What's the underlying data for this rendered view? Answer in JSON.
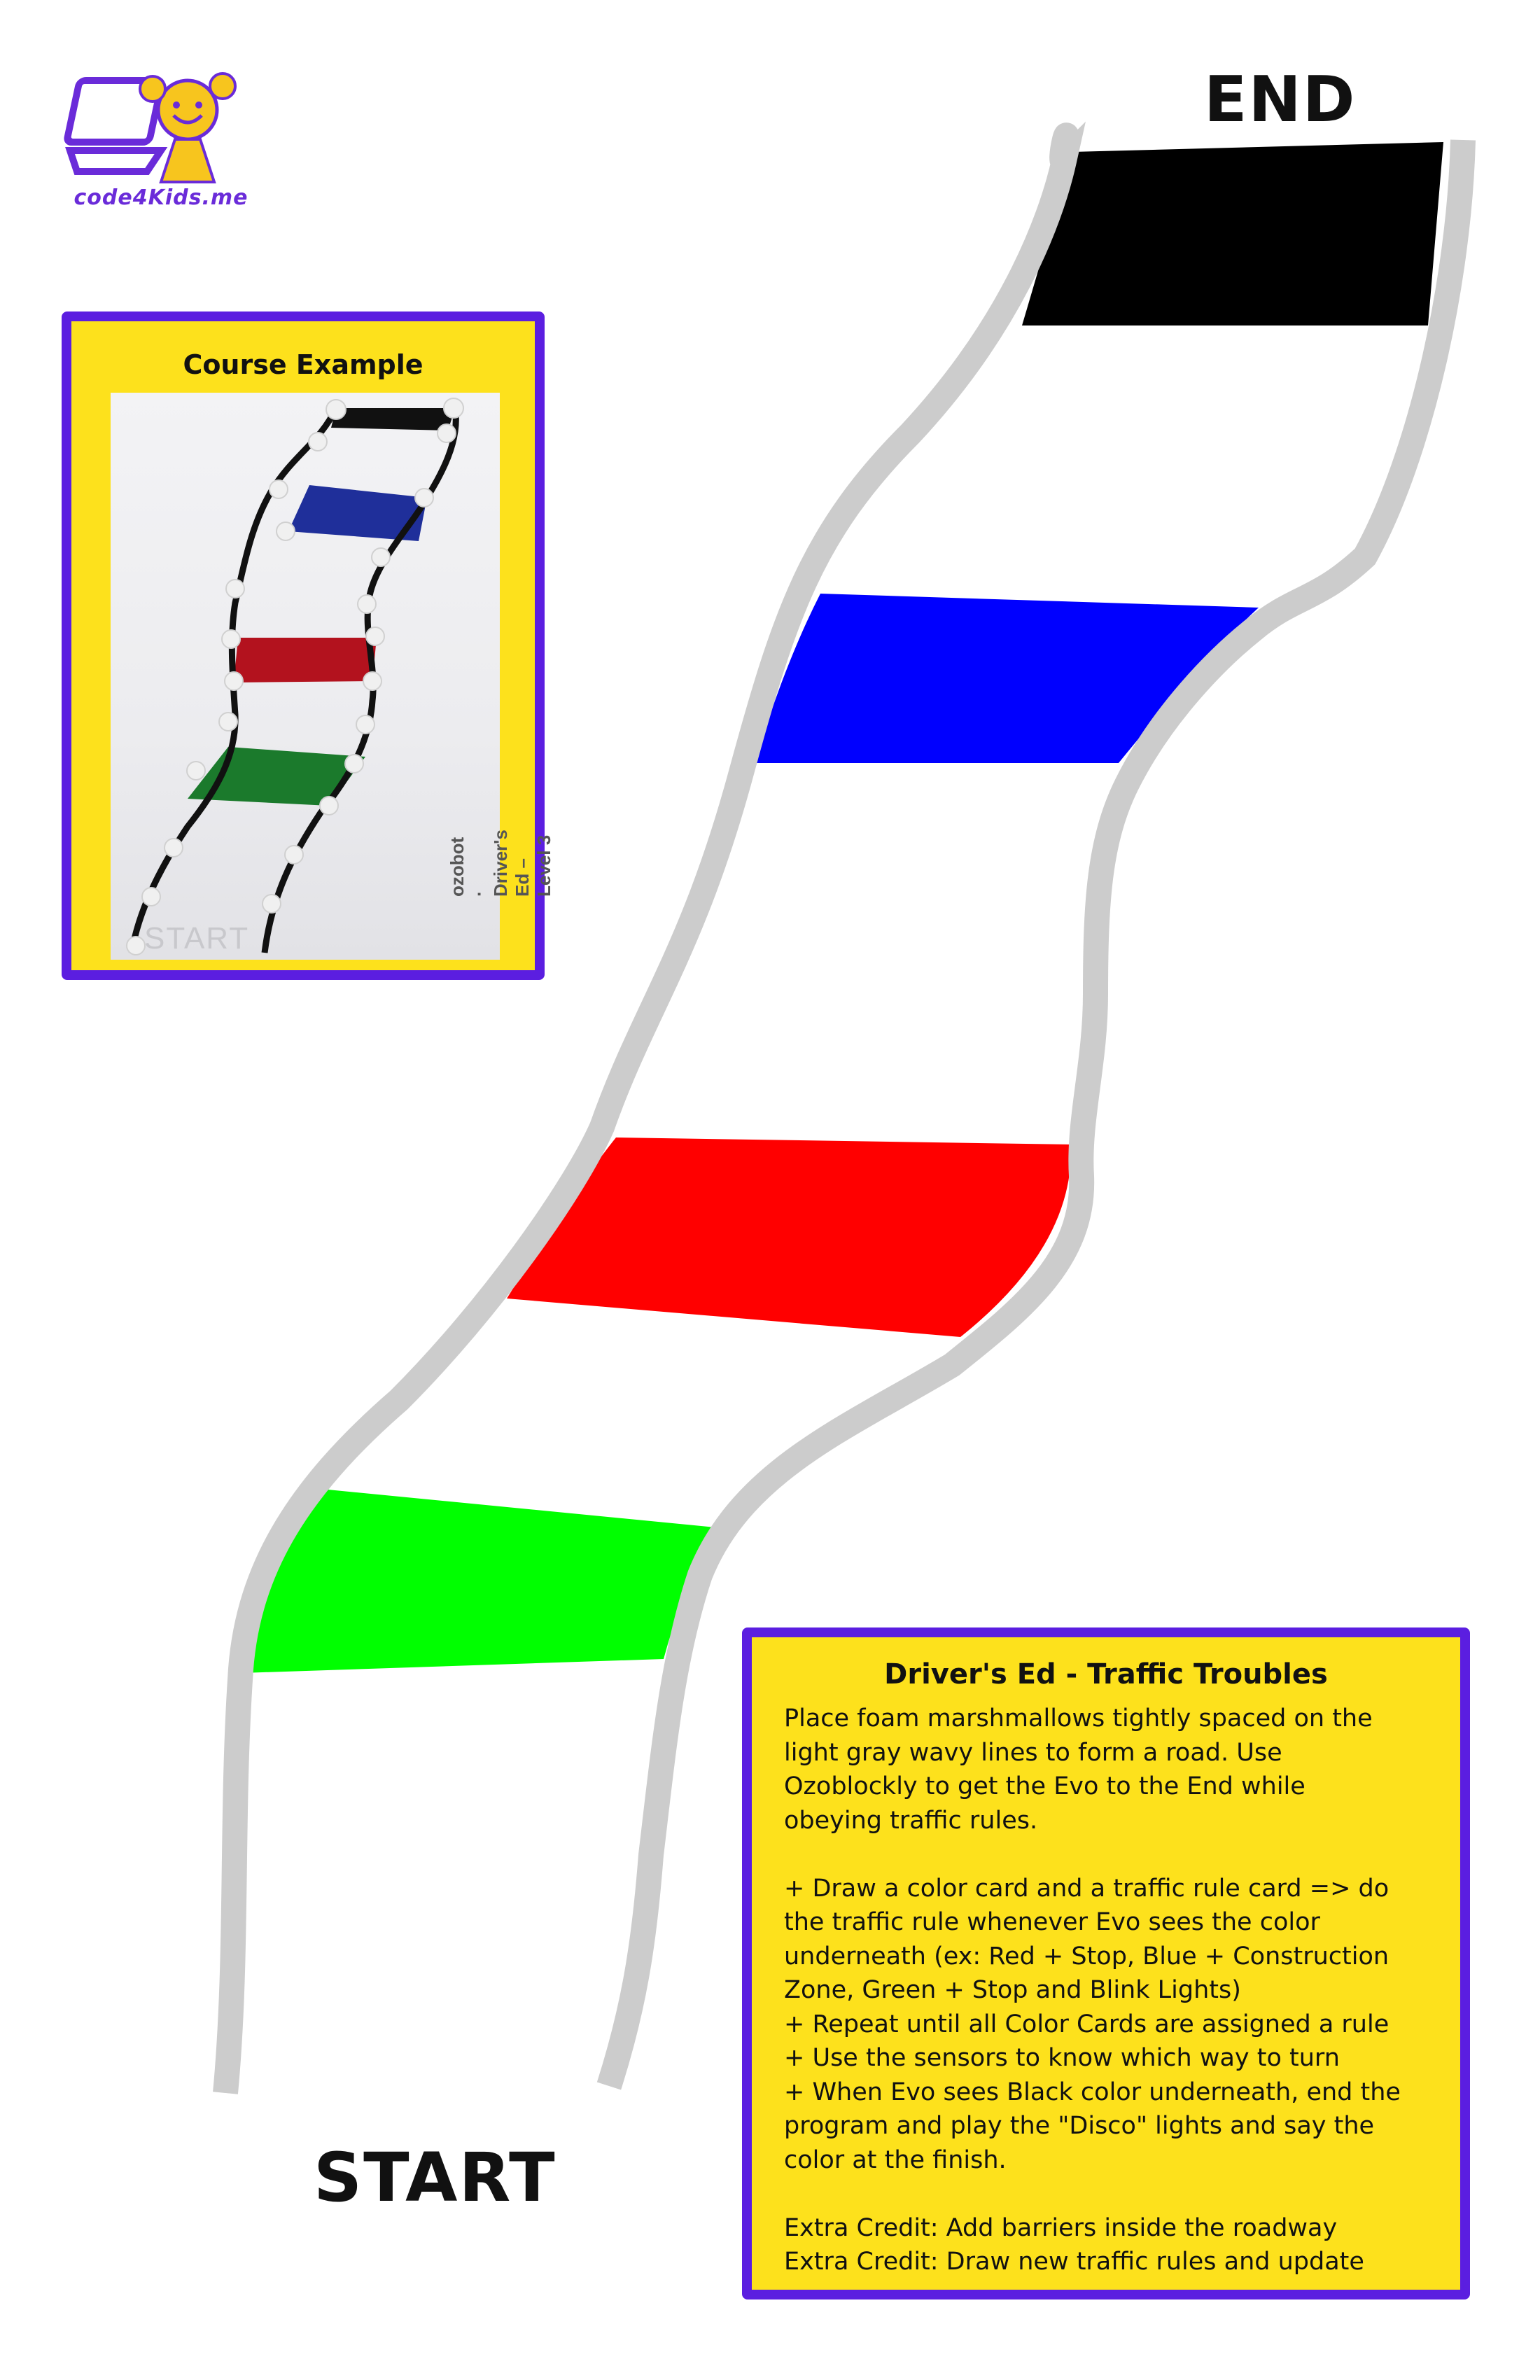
{
  "logo": {
    "text": "code4Kids.me",
    "icon": "laptop-kid-logo-icon"
  },
  "labels": {
    "end": "END",
    "start": "START"
  },
  "course_example": {
    "title": "Course Example",
    "photo_start": "START",
    "photo_brand": "ozobot · Driver's Ed – Level 3"
  },
  "road": {
    "edge_color": "#cccccc",
    "stripes": [
      {
        "color": "#000000",
        "name": "black"
      },
      {
        "color": "#0000ff",
        "name": "blue"
      },
      {
        "color": "#ff0000",
        "name": "red"
      },
      {
        "color": "#00ff00",
        "name": "green"
      }
    ]
  },
  "instructions": {
    "title": "Driver's Ed - Traffic Troubles",
    "paragraph1": [
      "Place foam marshmallows tightly spaced on the",
      "light gray wavy lines to form a road. Use",
      "Ozoblockly to get the Evo to the End while",
      "obeying traffic rules."
    ],
    "rules": [
      "+ Draw a color card and a traffic rule card => do",
      "the traffic rule whenever Evo sees the color",
      "underneath (ex: Red + Stop, Blue + Construction",
      "Zone, Green + Stop and Blink Lights)",
      "+ Repeat until all Color Cards are assigned a rule",
      "+ Use the sensors to know which way to turn",
      "+ When Evo sees Black color underneath, end the",
      "program and play the \"Disco\" lights and say the",
      "color at the finish."
    ],
    "extra": [
      "Extra Credit: Add barriers inside the roadway",
      "Extra Credit: Draw new traffic rules and update"
    ]
  },
  "colors": {
    "card_bg": "#fde11c",
    "card_border": "#5b1ee0"
  }
}
